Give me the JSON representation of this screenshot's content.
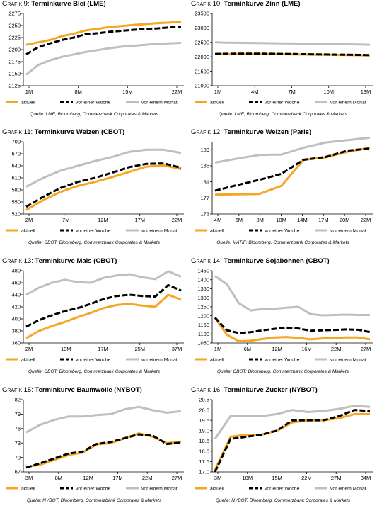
{
  "legend": {
    "aktuell": "aktuell",
    "week": "vor einer Woche",
    "month": "vor einem Monat"
  },
  "colors": {
    "aktuell": "#f5a623",
    "week": "#000000",
    "month": "#bfbfbf"
  },
  "panels": [
    {
      "prefix": "Grafik 9:",
      "title": "Terminkurve Blei (LME)",
      "source": "Quelle: LME; Bloomberg, Commerzbank Corporates & Markets"
    },
    {
      "prefix": "Grafik 10:",
      "title": "Terminkurve Zinn (LME)",
      "source": "Quelle: LME; Bloomberg, Commerzbank Corporates & Markets"
    },
    {
      "prefix": "Grafik 11:",
      "title": "Terminkurve Weizen (CBOT)",
      "source": "Quelle: CBOT; Bloomberg, Commerzbank Corporates & Markets"
    },
    {
      "prefix": "Grafik 12:",
      "title": "Terminkurve Weizen (Paris)",
      "source": "Quelle: MATIF; Bloomberg, Commerzbank Corporates & Markets"
    },
    {
      "prefix": "Grafik 13:",
      "title": "Terminkurve Mais (CBOT)",
      "source": "Quelle: CBOT; Bloomberg, Commerzbank Corporates & Markets"
    },
    {
      "prefix": "Grafik 14:",
      "title": "Terminkurve Sojabohnen (CBOT)",
      "source": "Quelle: CBOT; Bloomberg, Commerzbank Corporates & Markets"
    },
    {
      "prefix": "Grafik 15:",
      "title": "Terminkurve Baumwolle (NYBOT)",
      "source": "Quelle: NYBOT; Bloomberg, Commerzbank Corporates & Markets"
    },
    {
      "prefix": "Grafik 16:",
      "title": "Terminkurve Zucker (NYBOT)",
      "source": "Quelle: NYBOT; Bloomberg, Commerzbank Corporates & Markets"
    }
  ],
  "chart_data": [
    {
      "type": "line",
      "x_ticks": [
        "1M",
        "8M",
        "15M",
        "22M"
      ],
      "y_ticks": [
        "2125",
        "2150",
        "2175",
        "2200",
        "2225",
        "2250",
        "2275"
      ],
      "ylim": [
        2125,
        2275
      ],
      "legend_position": "bottom",
      "series": [
        {
          "name": "aktuell",
          "values": [
            2210,
            2215,
            2220,
            2228,
            2233,
            2240,
            2243,
            2247,
            2249,
            2251,
            2253,
            2255,
            2256,
            2258
          ]
        },
        {
          "name": "vor einer Woche",
          "values": [
            2190,
            2205,
            2213,
            2220,
            2225,
            2232,
            2234,
            2237,
            2239,
            2241,
            2243,
            2244,
            2246,
            2247
          ]
        },
        {
          "name": "vor einem Monat",
          "values": [
            2148,
            2168,
            2178,
            2185,
            2190,
            2195,
            2199,
            2203,
            2206,
            2208,
            2210,
            2212,
            2213,
            2214
          ]
        }
      ]
    },
    {
      "type": "line",
      "x_ticks": [
        "1M",
        "4M",
        "7M",
        "10M",
        "13M"
      ],
      "y_ticks": [
        "21000",
        "21500",
        "22000",
        "22500",
        "23000",
        "23500"
      ],
      "ylim": [
        21000,
        23500
      ],
      "legend_position": "bottom",
      "series": [
        {
          "name": "aktuell",
          "values": [
            22090,
            22095,
            22100,
            22100,
            22100,
            22095,
            22090,
            22085,
            22080,
            22075,
            22070,
            22065,
            22060,
            22055,
            22050
          ]
        },
        {
          "name": "vor einer Woche",
          "values": [
            22100,
            22105,
            22110,
            22110,
            22110,
            22105,
            22100,
            22095,
            22090,
            22085,
            22080,
            22075,
            22070,
            22065,
            22060
          ]
        },
        {
          "name": "vor einem Monat",
          "values": [
            22500,
            22490,
            22485,
            22480,
            22475,
            22470,
            22465,
            22460,
            22455,
            22450,
            22445,
            22440,
            22435,
            22430,
            22420
          ]
        }
      ]
    },
    {
      "type": "line",
      "x_ticks": [
        "2M",
        "7M",
        "12M",
        "17M",
        "22M"
      ],
      "y_ticks": [
        "520",
        "550",
        "580",
        "610",
        "640",
        "670",
        "700"
      ],
      "ylim": [
        520,
        700
      ],
      "legend_position": "bottom",
      "series": [
        {
          "name": "aktuell",
          "values": [
            530,
            555,
            575,
            590,
            600,
            612,
            625,
            638,
            641,
            632
          ]
        },
        {
          "name": "vor einer Woche",
          "values": [
            538,
            563,
            585,
            600,
            610,
            623,
            637,
            645,
            646,
            635
          ]
        },
        {
          "name": "vor einem Monat",
          "values": [
            588,
            610,
            628,
            640,
            652,
            662,
            675,
            680,
            680,
            672
          ]
        }
      ]
    },
    {
      "type": "line",
      "x_ticks": [
        "4M",
        "6M",
        "8M",
        "10M",
        "14M",
        "17M",
        "20M",
        "22M"
      ],
      "y_ticks": [
        "173",
        "177",
        "181",
        "185",
        "189"
      ],
      "ylim": [
        173,
        191
      ],
      "legend_position": "bottom",
      "series": [
        {
          "name": "aktuell",
          "values": [
            177.8,
            177.9,
            178.0,
            180.0,
            186.5,
            187.1,
            188.5,
            189.5
          ]
        },
        {
          "name": "vor einer Woche",
          "values": [
            178.8,
            180.2,
            181.5,
            183.0,
            186.5,
            187.2,
            188.8,
            189.3
          ]
        },
        {
          "name": "vor einem Monat",
          "values": [
            185.8,
            186.8,
            187.7,
            187.8,
            189.5,
            190.8,
            191.4,
            192.0
          ]
        }
      ]
    },
    {
      "type": "line",
      "x_ticks": [
        "2M",
        "10M",
        "17M",
        "25M",
        "37M"
      ],
      "y_ticks": [
        "360",
        "380",
        "400",
        "420",
        "440",
        "460",
        "480"
      ],
      "ylim": [
        360,
        480
      ],
      "legend_position": "bottom",
      "series": [
        {
          "name": "aktuell",
          "values": [
            368,
            380,
            388,
            395,
            403,
            410,
            418,
            423,
            425,
            422,
            420,
            440,
            432
          ]
        },
        {
          "name": "vor einer Woche",
          "values": [
            387,
            398,
            406,
            413,
            418,
            425,
            433,
            438,
            440,
            438,
            437,
            456,
            447
          ]
        },
        {
          "name": "vor einem Monat",
          "values": [
            440,
            452,
            460,
            465,
            461,
            460,
            468,
            472,
            474,
            469,
            466,
            479,
            470
          ]
        }
      ]
    },
    {
      "type": "line",
      "x_ticks": [
        "1M",
        "6M",
        "12M",
        "16M",
        "22M",
        "27M"
      ],
      "y_ticks": [
        "1050",
        "1100",
        "1150",
        "1200",
        "1250",
        "1300",
        "1350",
        "1400",
        "1450"
      ],
      "ylim": [
        1050,
        1450
      ],
      "legend_position": "bottom",
      "series": [
        {
          "name": "aktuell",
          "values": [
            1190,
            1095,
            1060,
            1062,
            1072,
            1080,
            1083,
            1078,
            1070,
            1075,
            1078,
            1080,
            1080,
            1070
          ]
        },
        {
          "name": "vor einer Woche",
          "values": [
            1190,
            1120,
            1105,
            1110,
            1120,
            1128,
            1135,
            1130,
            1118,
            1120,
            1122,
            1125,
            1123,
            1110
          ]
        },
        {
          "name": "vor einem Monat",
          "values": [
            1420,
            1375,
            1270,
            1230,
            1238,
            1240,
            1245,
            1250,
            1210,
            1203,
            1205,
            1207,
            1205,
            1205
          ]
        }
      ]
    },
    {
      "type": "line",
      "x_ticks": [
        "3M",
        "8M",
        "12M",
        "17M",
        "22M",
        "27M"
      ],
      "y_ticks": [
        "67",
        "70",
        "73",
        "76",
        "79",
        "82"
      ],
      "ylim": [
        67,
        82
      ],
      "legend_position": "bottom",
      "series": [
        {
          "name": "aktuell",
          "values": [
            68.0,
            68.5,
            69.5,
            70.5,
            71.0,
            72.7,
            73.0,
            74.0,
            75.0,
            74.3,
            73.0,
            73.2
          ]
        },
        {
          "name": "vor einer Woche",
          "values": [
            67.9,
            68.8,
            69.8,
            70.8,
            71.2,
            72.8,
            73.2,
            74.0,
            74.8,
            74.5,
            72.8,
            73.1
          ]
        },
        {
          "name": "vor einem Monat",
          "values": [
            75.2,
            76.8,
            77.8,
            78.5,
            78.5,
            78.8,
            79.0,
            80.0,
            80.5,
            79.8,
            79.3,
            79.6
          ]
        }
      ]
    },
    {
      "type": "line",
      "x_ticks": [
        "3M",
        "10M",
        "15M",
        "22M",
        "27M",
        "34M"
      ],
      "y_ticks": [
        "17.0",
        "17.5",
        "18.0",
        "18.5",
        "19.0",
        "19.5",
        "20.0",
        "20.5"
      ],
      "ylim": [
        17.0,
        20.5
      ],
      "legend_position": "bottom",
      "series": [
        {
          "name": "aktuell",
          "values": [
            17.1,
            18.7,
            18.8,
            18.8,
            19.0,
            19.4,
            19.5,
            19.5,
            19.6,
            19.8,
            19.8
          ]
        },
        {
          "name": "vor einer Woche",
          "values": [
            17.0,
            18.6,
            18.7,
            18.8,
            19.0,
            19.5,
            19.5,
            19.5,
            19.7,
            20.0,
            19.95
          ]
        },
        {
          "name": "vor einem Monat",
          "values": [
            18.6,
            19.7,
            19.7,
            19.7,
            19.8,
            20.0,
            19.9,
            19.95,
            20.05,
            20.2,
            20.15
          ]
        }
      ]
    }
  ]
}
